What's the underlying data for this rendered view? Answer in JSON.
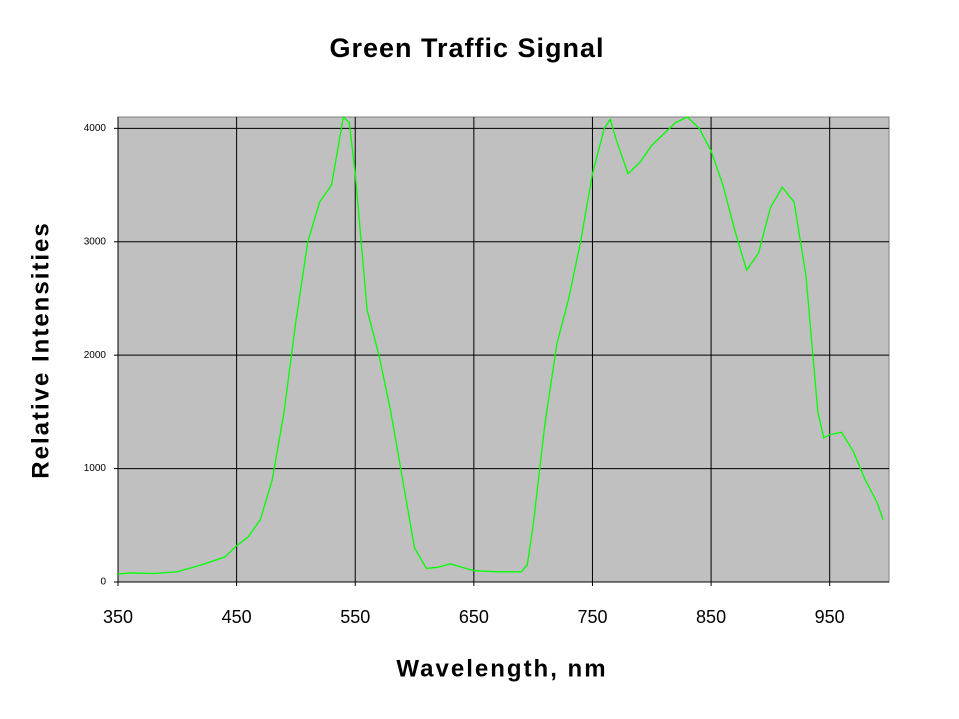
{
  "chart_data": {
    "type": "line",
    "title": "Green Traffic Signal",
    "x_label": "Wavelength, nm",
    "y_label": "Relative Intensities",
    "x": [
      350,
      360,
      380,
      400,
      420,
      440,
      450,
      460,
      470,
      480,
      490,
      500,
      510,
      520,
      530,
      535,
      540,
      545,
      550,
      555,
      560,
      570,
      580,
      590,
      600,
      610,
      620,
      630,
      640,
      650,
      670,
      690,
      695,
      700,
      710,
      720,
      730,
      740,
      750,
      760,
      765,
      770,
      780,
      790,
      800,
      810,
      820,
      830,
      840,
      850,
      860,
      870,
      880,
      890,
      900,
      910,
      920,
      930,
      940,
      945,
      950,
      960,
      970,
      980,
      990,
      995
    ],
    "series": [
      {
        "color": "#00ff00",
        "values": [
          70,
          80,
          75,
          90,
          150,
          220,
          320,
          400,
          550,
          900,
          1500,
          2300,
          3000,
          3350,
          3500,
          3800,
          4100,
          4050,
          3600,
          3000,
          2400,
          2000,
          1500,
          900,
          300,
          120,
          130,
          160,
          130,
          100,
          90,
          90,
          150,
          500,
          1400,
          2100,
          2500,
          3000,
          3600,
          4000,
          4080,
          3900,
          3600,
          3700,
          3850,
          3950,
          4050,
          4100,
          4000,
          3800,
          3500,
          3100,
          2750,
          2900,
          3300,
          3480,
          3350,
          2700,
          1500,
          1270,
          1300,
          1320,
          1150,
          900,
          700,
          550
        ]
      }
    ],
    "xlim": [
      350,
      1000
    ],
    "ylim": [
      0,
      4100
    ],
    "xticks": [
      350,
      450,
      550,
      650,
      750,
      850,
      950
    ],
    "yticks": [
      0,
      1000,
      2000,
      3000,
      4000
    ],
    "grid": true,
    "plot_background": "#c0c0c0"
  }
}
